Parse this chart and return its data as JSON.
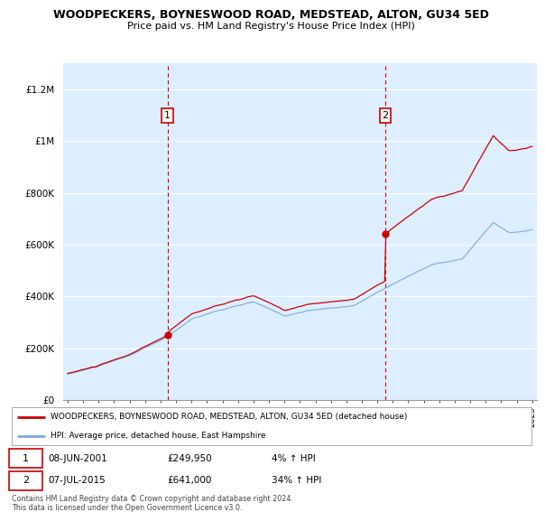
{
  "title": "WOODPECKERS, BOYNESWOOD ROAD, MEDSTEAD, ALTON, GU34 5ED",
  "subtitle": "Price paid vs. HM Land Registry's House Price Index (HPI)",
  "legend_line1": "WOODPECKERS, BOYNESWOOD ROAD, MEDSTEAD, ALTON, GU34 5ED (detached house)",
  "legend_line2": "HPI: Average price, detached house, East Hampshire",
  "sale1_date": "08-JUN-2001",
  "sale1_price": "£249,950",
  "sale1_hpi": "4% ↑ HPI",
  "sale2_date": "07-JUL-2015",
  "sale2_price": "£641,000",
  "sale2_hpi": "34% ↑ HPI",
  "footnote": "Contains HM Land Registry data © Crown copyright and database right 2024.\nThis data is licensed under the Open Government Licence v3.0.",
  "ylim": [
    0,
    1300000
  ],
  "yticks": [
    0,
    200000,
    400000,
    600000,
    800000,
    1000000,
    1200000
  ],
  "ytick_labels": [
    "£0",
    "£200K",
    "£400K",
    "£600K",
    "£800K",
    "£1M",
    "£1.2M"
  ],
  "year_start": 1995,
  "year_end": 2025,
  "sale1_year": 2001.44,
  "sale2_year": 2015.52,
  "sale1_price_val": 249950,
  "sale2_price_val": 641000,
  "line_color_sale": "#cc0000",
  "line_color_hpi": "#7aaadd",
  "vline_color": "#cc0000",
  "marker_color": "#cc0000",
  "bg_color": "#ddeeff",
  "grid_color": "#ffffff"
}
